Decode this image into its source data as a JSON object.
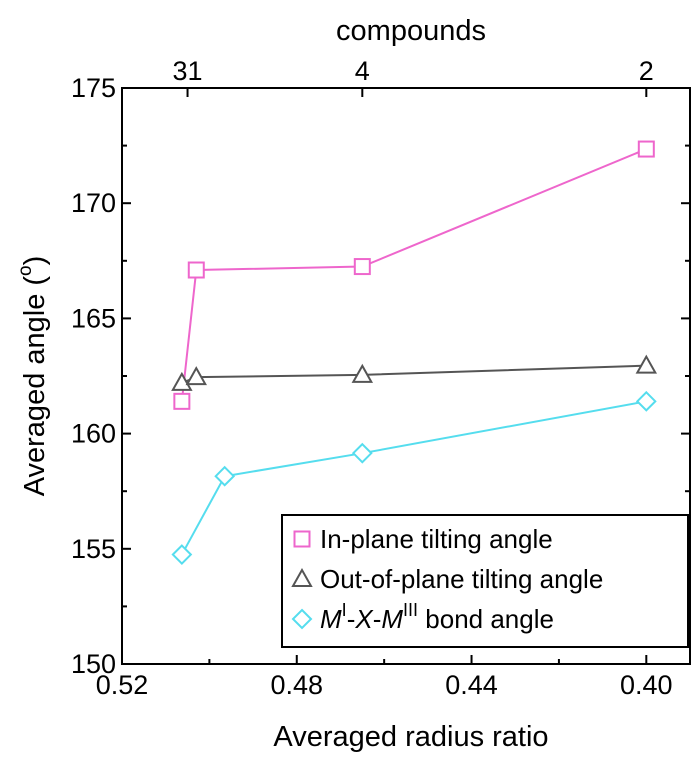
{
  "chart_data": {
    "type": "line",
    "xlabel": "Averaged radius ratio",
    "ylabel": "Averaged angle (",
    "ylabel_degree": "o",
    "ylabel_close": ")",
    "top_axis_label": "compounds",
    "top_ticks": [
      {
        "x": 0.505,
        "label": "31"
      },
      {
        "x": 0.465,
        "label": "4"
      },
      {
        "x": 0.4,
        "label": "2"
      }
    ],
    "xlim": [
      0.52,
      0.39
    ],
    "ylim": [
      150,
      175
    ],
    "x_ticks": [
      {
        "x": 0.52,
        "label": "0.52"
      },
      {
        "x": 0.48,
        "label": "0.48"
      },
      {
        "x": 0.44,
        "label": "0.44"
      },
      {
        "x": 0.4,
        "label": "0.40"
      }
    ],
    "y_ticks": [
      {
        "y": 150,
        "label": "150"
      },
      {
        "y": 155,
        "label": "155"
      },
      {
        "y": 160,
        "label": "160"
      },
      {
        "y": 165,
        "label": "165"
      },
      {
        "y": 170,
        "label": "170"
      },
      {
        "y": 175,
        "label": "175"
      }
    ],
    "series": [
      {
        "name": "In-plane tilting angle",
        "color": "#ee66cc",
        "marker": "square",
        "points": [
          {
            "x": 0.5063,
            "y": 161.4
          },
          {
            "x": 0.503,
            "y": 167.1
          },
          {
            "x": 0.465,
            "y": 167.25
          },
          {
            "x": 0.4,
            "y": 172.35
          }
        ]
      },
      {
        "name": "Out-of-plane tilting angle",
        "color": "#555555",
        "marker": "triangle",
        "points": [
          {
            "x": 0.5063,
            "y": 162.2
          },
          {
            "x": 0.503,
            "y": 162.45
          },
          {
            "x": 0.465,
            "y": 162.55
          },
          {
            "x": 0.4,
            "y": 162.95
          }
        ]
      },
      {
        "name_parts": [
          {
            "text": "M",
            "italic": true
          },
          {
            "text": "I",
            "sup": true
          },
          {
            "text": "-"
          },
          {
            "text": "X",
            "italic": true
          },
          {
            "text": "-"
          },
          {
            "text": "M",
            "italic": true
          },
          {
            "text": "III",
            "sup": true
          },
          {
            "text": " bond angle"
          }
        ],
        "color": "#55ddee",
        "marker": "diamond",
        "points": [
          {
            "x": 0.5063,
            "y": 154.75
          },
          {
            "x": 0.4965,
            "y": 158.15
          },
          {
            "x": 0.465,
            "y": 159.15
          },
          {
            "x": 0.4,
            "y": 161.4
          }
        ]
      }
    ],
    "legend_position": "bottom-right"
  }
}
